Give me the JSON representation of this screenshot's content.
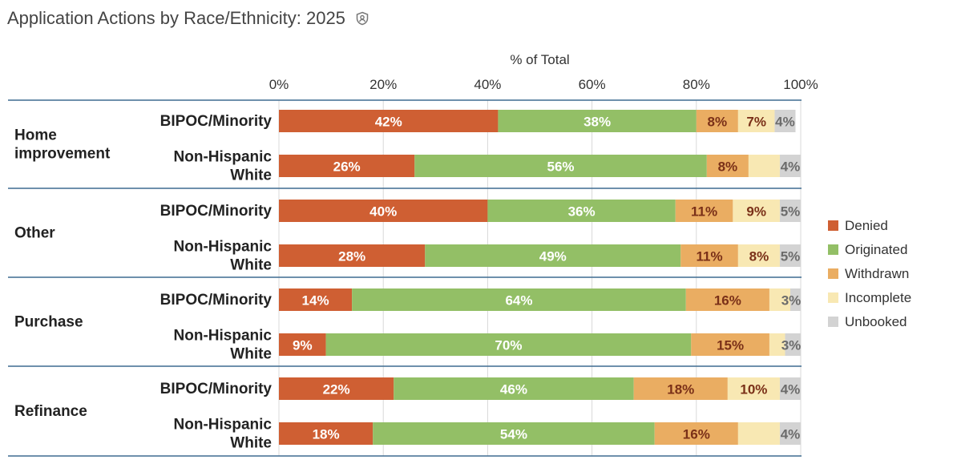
{
  "title": "Application Actions by Race/Ethnicity: 2025",
  "icons": {
    "title_icon": "shield-user-icon"
  },
  "colors": {
    "Denied": "#cf5f33",
    "Originated": "#93bf66",
    "Withdrawn": "#eaad62",
    "Incomplete": "#f8e8b3",
    "Unbooked": "#d3d3d3",
    "axis_line": "#3f6c91",
    "grid": "#d9d9d9"
  },
  "chart_data": {
    "type": "bar",
    "orientation": "horizontal",
    "stacked": true,
    "title": "Application Actions by Race/Ethnicity: 2025",
    "xlabel": "% of Total",
    "xlim": [
      0,
      100
    ],
    "x_ticks": [
      "0%",
      "20%",
      "40%",
      "60%",
      "80%",
      "100%"
    ],
    "x_tick_values": [
      0,
      20,
      40,
      60,
      80,
      100
    ],
    "grid": true,
    "legend_position": "right",
    "legend": [
      "Denied",
      "Originated",
      "Withdrawn",
      "Incomplete",
      "Unbooked"
    ],
    "groups": [
      {
        "name": "Home improvement",
        "name_lines": [
          "Home",
          "improvement"
        ],
        "rows": [
          {
            "label": "BIPOC/Minority",
            "label_lines": [
              "BIPOC/Minority"
            ],
            "values": [
              42,
              38,
              8,
              7,
              4
            ],
            "labels": [
              "42%",
              "38%",
              "8%",
              "7%",
              "4%"
            ]
          },
          {
            "label": "Non-Hispanic White",
            "label_lines": [
              "Non-Hispanic",
              "White"
            ],
            "values": [
              26,
              56,
              8,
              6,
              4
            ],
            "labels": [
              "26%",
              "56%",
              "8%",
              "",
              "4%"
            ]
          }
        ]
      },
      {
        "name": "Other",
        "name_lines": [
          "Other"
        ],
        "rows": [
          {
            "label": "BIPOC/Minority",
            "label_lines": [
              "BIPOC/Minority"
            ],
            "values": [
              40,
              36,
              11,
              9,
              5
            ],
            "labels": [
              "40%",
              "36%",
              "11%",
              "9%",
              "5%"
            ]
          },
          {
            "label": "Non-Hispanic White",
            "label_lines": [
              "Non-Hispanic",
              "White"
            ],
            "values": [
              28,
              49,
              11,
              8,
              5
            ],
            "labels": [
              "28%",
              "49%",
              "11%",
              "8%",
              "5%"
            ]
          }
        ]
      },
      {
        "name": "Purchase",
        "name_lines": [
          "Purchase"
        ],
        "rows": [
          {
            "label": "BIPOC/Minority",
            "label_lines": [
              "BIPOC/Minority"
            ],
            "values": [
              14,
              64,
              16,
              4,
              3
            ],
            "labels": [
              "14%",
              "64%",
              "16%",
              "",
              "3%"
            ]
          },
          {
            "label": "Non-Hispanic White",
            "label_lines": [
              "Non-Hispanic",
              "White"
            ],
            "values": [
              9,
              70,
              15,
              3,
              3
            ],
            "labels": [
              "9%",
              "70%",
              "15%",
              "",
              "3%"
            ]
          }
        ]
      },
      {
        "name": "Refinance",
        "name_lines": [
          "Refinance"
        ],
        "rows": [
          {
            "label": "BIPOC/Minority",
            "label_lines": [
              "BIPOC/Minority"
            ],
            "values": [
              22,
              46,
              18,
              10,
              4
            ],
            "labels": [
              "22%",
              "46%",
              "18%",
              "10%",
              "4%"
            ]
          },
          {
            "label": "Non-Hispanic White",
            "label_lines": [
              "Non-Hispanic",
              "White"
            ],
            "values": [
              18,
              54,
              16,
              8,
              4
            ],
            "labels": [
              "18%",
              "54%",
              "16%",
              "",
              "4%"
            ]
          }
        ]
      }
    ]
  }
}
